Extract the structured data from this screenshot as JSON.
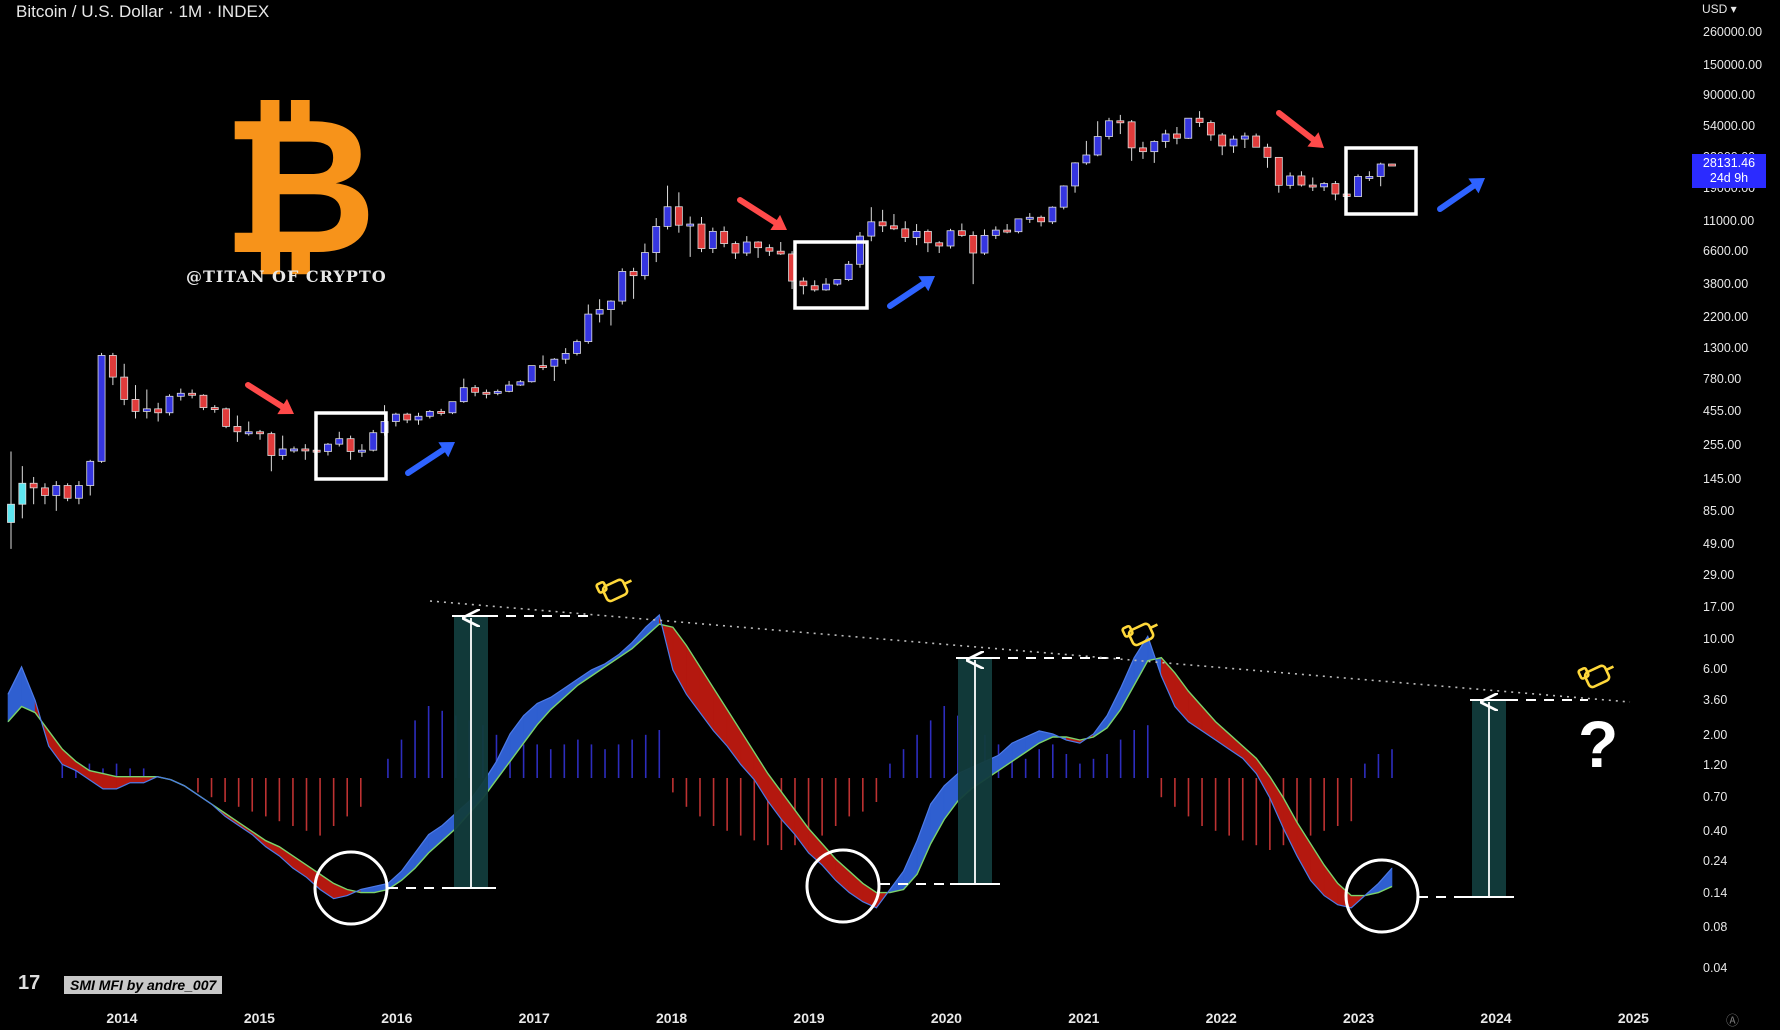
{
  "header": {
    "title": "Bitcoin / U.S. Dollar · 1M · INDEX",
    "currency": "USD"
  },
  "price_badge": {
    "price": "28131.46",
    "countdown": "24d 9h"
  },
  "overlay": {
    "logo_glyph": "B",
    "logo_text": "@TITAN OF CRYPTO",
    "indicator_name": "SMI MFI by andre_007",
    "tradingview_mark": "17",
    "question_mark": "?"
  },
  "colors": {
    "up": "#3535e0",
    "down": "#e03b3b",
    "early": "#5ee6f0",
    "bitcoin": "#f7931a",
    "band_blue": "#2f5fd0",
    "band_red": "#b4180f",
    "fill_green": "#5aa55a"
  },
  "chart_data": {
    "type": "candlestick",
    "scale": "log",
    "y_tick_labels": [
      "260000.00",
      "150000.00",
      "90000.00",
      "54000.00",
      "32000.00",
      "19000.00",
      "11000.00",
      "6600.00",
      "3800.00",
      "2200.00",
      "1300.00",
      "780.00",
      "455.00",
      "255.00",
      "145.00",
      "85.00",
      "49.00",
      "29.00",
      "17.00",
      "10.00",
      "6.00",
      "3.60",
      "2.00",
      "1.20",
      "0.70",
      "0.40",
      "0.24",
      "0.14",
      "0.08",
      "0.04"
    ],
    "x_tick_labels": [
      "2014",
      "2015",
      "2016",
      "2017",
      "2018",
      "2019",
      "2020",
      "2021",
      "2022",
      "2023",
      "2024",
      "2025"
    ],
    "x_range": [
      "2013-03",
      "2025-06"
    ],
    "candles": [
      {
        "o": 70,
        "h": 230,
        "l": 45,
        "c": 95,
        "g": "early"
      },
      {
        "o": 95,
        "h": 180,
        "l": 75,
        "c": 135,
        "g": "early"
      },
      {
        "o": 135,
        "h": 150,
        "l": 95,
        "c": 125
      },
      {
        "o": 125,
        "h": 135,
        "l": 95,
        "c": 110
      },
      {
        "o": 110,
        "h": 140,
        "l": 85,
        "c": 130,
        "g": "up"
      },
      {
        "o": 130,
        "h": 135,
        "l": 100,
        "c": 105
      },
      {
        "o": 105,
        "h": 140,
        "l": 95,
        "c": 130,
        "g": "up"
      },
      {
        "o": 130,
        "h": 200,
        "l": 110,
        "c": 195,
        "g": "up"
      },
      {
        "o": 195,
        "h": 1200,
        "l": 190,
        "c": 1150,
        "g": "up"
      },
      {
        "o": 1150,
        "h": 1200,
        "l": 700,
        "c": 800
      },
      {
        "o": 800,
        "h": 1000,
        "l": 500,
        "c": 550
      },
      {
        "o": 550,
        "h": 700,
        "l": 400,
        "c": 450
      },
      {
        "o": 450,
        "h": 650,
        "l": 400,
        "c": 470
      },
      {
        "o": 470,
        "h": 520,
        "l": 380,
        "c": 440
      },
      {
        "o": 440,
        "h": 600,
        "l": 420,
        "c": 580,
        "g": "up"
      },
      {
        "o": 580,
        "h": 660,
        "l": 540,
        "c": 610,
        "g": "up"
      },
      {
        "o": 610,
        "h": 650,
        "l": 560,
        "c": 590
      },
      {
        "o": 590,
        "h": 600,
        "l": 460,
        "c": 480
      },
      {
        "o": 480,
        "h": 500,
        "l": 440,
        "c": 470
      },
      {
        "o": 470,
        "h": 480,
        "l": 340,
        "c": 350
      },
      {
        "o": 350,
        "h": 420,
        "l": 270,
        "c": 320
      },
      {
        "o": 320,
        "h": 380,
        "l": 300,
        "c": 320
      },
      {
        "o": 320,
        "h": 330,
        "l": 280,
        "c": 310
      },
      {
        "o": 310,
        "h": 320,
        "l": 165,
        "c": 215
      },
      {
        "o": 215,
        "h": 300,
        "l": 200,
        "c": 240
      },
      {
        "o": 240,
        "h": 250,
        "l": 225,
        "c": 240
      },
      {
        "o": 240,
        "h": 260,
        "l": 200,
        "c": 235
      },
      {
        "o": 235,
        "h": 240,
        "l": 220,
        "c": 230
      },
      {
        "o": 230,
        "h": 265,
        "l": 215,
        "c": 260,
        "g": "up"
      },
      {
        "o": 260,
        "h": 320,
        "l": 250,
        "c": 285
      },
      {
        "o": 285,
        "h": 300,
        "l": 200,
        "c": 230
      },
      {
        "o": 230,
        "h": 260,
        "l": 210,
        "c": 235
      },
      {
        "o": 235,
        "h": 330,
        "l": 230,
        "c": 315,
        "g": "up"
      },
      {
        "o": 315,
        "h": 500,
        "l": 300,
        "c": 380,
        "g": "up"
      },
      {
        "o": 380,
        "h": 440,
        "l": 350,
        "c": 430
      },
      {
        "o": 430,
        "h": 440,
        "l": 370,
        "c": 390
      },
      {
        "o": 390,
        "h": 440,
        "l": 360,
        "c": 415,
        "g": "up"
      },
      {
        "o": 415,
        "h": 460,
        "l": 400,
        "c": 450,
        "g": "up"
      },
      {
        "o": 450,
        "h": 470,
        "l": 420,
        "c": 440
      },
      {
        "o": 440,
        "h": 530,
        "l": 430,
        "c": 530,
        "g": "up"
      },
      {
        "o": 530,
        "h": 780,
        "l": 520,
        "c": 670,
        "g": "up"
      },
      {
        "o": 670,
        "h": 700,
        "l": 580,
        "c": 620
      },
      {
        "o": 620,
        "h": 650,
        "l": 560,
        "c": 610
      },
      {
        "o": 610,
        "h": 650,
        "l": 590,
        "c": 630,
        "g": "up"
      },
      {
        "o": 630,
        "h": 750,
        "l": 620,
        "c": 700,
        "g": "up"
      },
      {
        "o": 700,
        "h": 760,
        "l": 690,
        "c": 740,
        "g": "up"
      },
      {
        "o": 740,
        "h": 920,
        "l": 730,
        "c": 970,
        "g": "up"
      },
      {
        "o": 970,
        "h": 1150,
        "l": 900,
        "c": 960
      },
      {
        "o": 960,
        "h": 1100,
        "l": 750,
        "c": 1080,
        "g": "up"
      },
      {
        "o": 1080,
        "h": 1300,
        "l": 1000,
        "c": 1190,
        "g": "up"
      },
      {
        "o": 1190,
        "h": 1500,
        "l": 1150,
        "c": 1450,
        "g": "up"
      },
      {
        "o": 1450,
        "h": 2700,
        "l": 1400,
        "c": 2300,
        "g": "up"
      },
      {
        "o": 2300,
        "h": 2950,
        "l": 2000,
        "c": 2480,
        "g": "up"
      },
      {
        "o": 2480,
        "h": 2900,
        "l": 1900,
        "c": 2860,
        "g": "up"
      },
      {
        "o": 2860,
        "h": 4950,
        "l": 2700,
        "c": 4700,
        "g": "up"
      },
      {
        "o": 4700,
        "h": 5000,
        "l": 2970,
        "c": 4380
      },
      {
        "o": 4380,
        "h": 7500,
        "l": 4100,
        "c": 6450,
        "g": "up"
      },
      {
        "o": 6450,
        "h": 11500,
        "l": 5500,
        "c": 10000,
        "g": "up"
      },
      {
        "o": 10000,
        "h": 19800,
        "l": 9500,
        "c": 13900,
        "g": "up"
      },
      {
        "o": 13900,
        "h": 17700,
        "l": 9000,
        "c": 10200
      },
      {
        "o": 10200,
        "h": 11800,
        "l": 6000,
        "c": 10400,
        "g": "up"
      },
      {
        "o": 10400,
        "h": 11700,
        "l": 6500,
        "c": 6900
      },
      {
        "o": 6900,
        "h": 9800,
        "l": 6400,
        "c": 9200,
        "g": "up"
      },
      {
        "o": 9200,
        "h": 9990,
        "l": 7050,
        "c": 7500
      },
      {
        "o": 7500,
        "h": 7780,
        "l": 5800,
        "c": 6400
      },
      {
        "o": 6400,
        "h": 8500,
        "l": 6100,
        "c": 7700,
        "g": "up"
      },
      {
        "o": 7700,
        "h": 7800,
        "l": 5900,
        "c": 7000
      },
      {
        "o": 7000,
        "h": 7400,
        "l": 6100,
        "c": 6600
      },
      {
        "o": 6600,
        "h": 7700,
        "l": 6200,
        "c": 6300
      },
      {
        "o": 6300,
        "h": 6600,
        "l": 3500,
        "c": 4000
      },
      {
        "o": 4000,
        "h": 4250,
        "l": 3200,
        "c": 3700
      },
      {
        "o": 3700,
        "h": 4050,
        "l": 3350,
        "c": 3450
      },
      {
        "o": 3450,
        "h": 4200,
        "l": 3400,
        "c": 3800,
        "g": "up"
      },
      {
        "o": 3800,
        "h": 4100,
        "l": 3700,
        "c": 4100,
        "g": "up"
      },
      {
        "o": 4100,
        "h": 5600,
        "l": 4000,
        "c": 5300,
        "g": "up"
      },
      {
        "o": 5300,
        "h": 9100,
        "l": 5000,
        "c": 8500,
        "g": "up"
      },
      {
        "o": 8500,
        "h": 13800,
        "l": 7800,
        "c": 10800,
        "g": "up"
      },
      {
        "o": 10800,
        "h": 13200,
        "l": 9100,
        "c": 10100
      },
      {
        "o": 10100,
        "h": 12300,
        "l": 9400,
        "c": 9600
      },
      {
        "o": 9600,
        "h": 10900,
        "l": 7700,
        "c": 8300
      },
      {
        "o": 8300,
        "h": 10400,
        "l": 7300,
        "c": 9200,
        "g": "up"
      },
      {
        "o": 9200,
        "h": 9500,
        "l": 6500,
        "c": 7600
      },
      {
        "o": 7600,
        "h": 7800,
        "l": 6400,
        "c": 7200
      },
      {
        "o": 7200,
        "h": 9600,
        "l": 6900,
        "c": 9300,
        "g": "up"
      },
      {
        "o": 9300,
        "h": 10500,
        "l": 8400,
        "c": 8600
      },
      {
        "o": 8600,
        "h": 9200,
        "l": 3800,
        "c": 6400
      },
      {
        "o": 6400,
        "h": 9500,
        "l": 6200,
        "c": 8600,
        "g": "up"
      },
      {
        "o": 8600,
        "h": 10000,
        "l": 8100,
        "c": 9400,
        "g": "up"
      },
      {
        "o": 9400,
        "h": 10400,
        "l": 8900,
        "c": 9150
      },
      {
        "o": 9150,
        "h": 11400,
        "l": 8900,
        "c": 11350,
        "g": "up"
      },
      {
        "o": 11350,
        "h": 12500,
        "l": 10600,
        "c": 11650,
        "g": "up"
      },
      {
        "o": 11650,
        "h": 12000,
        "l": 10000,
        "c": 10800
      },
      {
        "o": 10800,
        "h": 14000,
        "l": 10400,
        "c": 13800,
        "g": "up"
      },
      {
        "o": 13800,
        "h": 19900,
        "l": 13300,
        "c": 19700,
        "g": "up"
      },
      {
        "o": 19700,
        "h": 29300,
        "l": 17600,
        "c": 29000,
        "g": "up"
      },
      {
        "o": 29000,
        "h": 41900,
        "l": 28100,
        "c": 33100,
        "g": "up"
      },
      {
        "o": 33100,
        "h": 58300,
        "l": 32400,
        "c": 45100,
        "g": "up"
      },
      {
        "o": 45100,
        "h": 61700,
        "l": 43000,
        "c": 58700,
        "g": "up"
      },
      {
        "o": 58700,
        "h": 64800,
        "l": 47000,
        "c": 57700
      },
      {
        "o": 57700,
        "h": 59500,
        "l": 30000,
        "c": 37300
      },
      {
        "o": 37300,
        "h": 41300,
        "l": 31000,
        "c": 35000
      },
      {
        "o": 35000,
        "h": 42300,
        "l": 29000,
        "c": 41500,
        "g": "up"
      },
      {
        "o": 41500,
        "h": 50500,
        "l": 37300,
        "c": 47100,
        "g": "up"
      },
      {
        "o": 47100,
        "h": 52900,
        "l": 39600,
        "c": 43800
      },
      {
        "o": 43800,
        "h": 61500,
        "l": 43300,
        "c": 61300,
        "g": "up"
      },
      {
        "o": 61300,
        "h": 69000,
        "l": 53000,
        "c": 57000
      },
      {
        "o": 57000,
        "h": 59100,
        "l": 42000,
        "c": 46300
      },
      {
        "o": 46300,
        "h": 47900,
        "l": 33000,
        "c": 38500
      },
      {
        "o": 38500,
        "h": 45800,
        "l": 34300,
        "c": 43200,
        "g": "up"
      },
      {
        "o": 43200,
        "h": 48200,
        "l": 37200,
        "c": 45500,
        "g": "up"
      },
      {
        "o": 45500,
        "h": 47400,
        "l": 37700,
        "c": 37700
      },
      {
        "o": 37700,
        "h": 40000,
        "l": 26700,
        "c": 31800
      },
      {
        "o": 31800,
        "h": 31900,
        "l": 17600,
        "c": 19900
      },
      {
        "o": 19900,
        "h": 24700,
        "l": 18800,
        "c": 23300,
        "g": "up"
      },
      {
        "o": 23300,
        "h": 25200,
        "l": 19500,
        "c": 20000
      },
      {
        "o": 20000,
        "h": 22700,
        "l": 18100,
        "c": 19400
      },
      {
        "o": 19400,
        "h": 21000,
        "l": 18100,
        "c": 20500,
        "g": "up"
      },
      {
        "o": 20500,
        "h": 21400,
        "l": 15500,
        "c": 17200
      },
      {
        "o": 17200,
        "h": 18400,
        "l": 16300,
        "c": 16500
      },
      {
        "o": 16500,
        "h": 23900,
        "l": 16500,
        "c": 23100,
        "g": "up"
      },
      {
        "o": 23100,
        "h": 25200,
        "l": 21400,
        "c": 23100
      },
      {
        "o": 23100,
        "h": 29100,
        "l": 19600,
        "c": 28450,
        "g": "up"
      },
      {
        "o": 28450,
        "h": 28600,
        "l": 27500,
        "c": 28131,
        "g": "up"
      }
    ],
    "indicator": {
      "name": "SMI MFI by andre_007",
      "y_range": [
        0,
        10
      ],
      "fast": [
        7.4,
        8.3,
        7.2,
        5.7,
        5.1,
        4.9,
        4.6,
        4.3,
        4.3,
        4.5,
        4.5,
        4.7,
        4.6,
        4.4,
        4.1,
        3.8,
        3.4,
        3.1,
        2.8,
        2.4,
        2.1,
        1.7,
        1.4,
        1.0,
        0.7,
        0.8,
        1.0,
        1.1,
        1.2,
        1.6,
        2.2,
        2.8,
        3.1,
        3.5,
        3.9,
        4.5,
        5.2,
        6.1,
        6.7,
        7.1,
        7.3,
        7.6,
        7.9,
        8.2,
        8.4,
        8.7,
        9.1,
        9.6,
        10.0,
        8.2,
        7.4,
        6.8,
        6.2,
        5.7,
        5.1,
        4.6,
        3.9,
        3.3,
        2.8,
        2.2,
        1.8,
        1.3,
        0.9,
        0.6,
        0.4,
        1.0,
        1.6,
        2.6,
        3.8,
        4.4,
        4.8,
        5.0,
        5.2,
        5.4,
        5.8,
        6.0,
        6.2,
        6.1,
        5.9,
        5.8,
        6.1,
        6.7,
        7.6,
        8.6,
        9.3,
        8.0,
        7.0,
        6.5,
        6.2,
        5.9,
        5.6,
        5.3,
        4.8,
        4.0,
        3.0,
        2.1,
        1.3,
        0.8,
        0.5,
        0.4,
        0.8,
        1.2,
        1.7
      ],
      "slow": [
        6.5,
        7.0,
        6.8,
        6.2,
        5.6,
        5.2,
        4.9,
        4.8,
        4.7,
        4.7,
        4.7,
        4.7,
        4.6,
        4.4,
        4.1,
        3.8,
        3.5,
        3.2,
        2.9,
        2.6,
        2.4,
        2.1,
        1.8,
        1.5,
        1.2,
        1.0,
        0.9,
        0.9,
        1.0,
        1.3,
        1.7,
        2.2,
        2.6,
        3.0,
        3.5,
        4.0,
        4.6,
        5.2,
        5.8,
        6.4,
        6.9,
        7.3,
        7.7,
        8.0,
        8.3,
        8.6,
        8.9,
        9.3,
        9.7,
        9.6,
        9.0,
        8.3,
        7.6,
        6.9,
        6.2,
        5.5,
        4.8,
        4.2,
        3.6,
        3.0,
        2.5,
        2.0,
        1.6,
        1.2,
        0.9,
        0.9,
        1.0,
        1.5,
        2.5,
        3.3,
        3.9,
        4.3,
        4.6,
        4.9,
        5.2,
        5.5,
        5.8,
        6.0,
        6.0,
        5.9,
        6.0,
        6.3,
        6.9,
        7.7,
        8.5,
        8.6,
        8.1,
        7.5,
        7.0,
        6.5,
        6.1,
        5.7,
        5.3,
        4.7,
        4.0,
        3.2,
        2.5,
        1.8,
        1.2,
        0.8,
        0.8,
        0.9,
        1.1
      ],
      "histogram": [
        0,
        0,
        0,
        0,
        0.4,
        0.3,
        0.3,
        0.2,
        0.3,
        0.2,
        0.2,
        0,
        0,
        0,
        -0.3,
        -0.4,
        -0.5,
        -0.6,
        -0.7,
        -0.8,
        -0.9,
        -1.0,
        -1.1,
        -1.2,
        -1.0,
        -0.8,
        -0.6,
        0,
        0.4,
        0.8,
        1.2,
        1.5,
        1.4,
        1.3,
        1.2,
        1.1,
        0.9,
        0.8,
        0.7,
        0.7,
        0.6,
        0.7,
        0.8,
        0.7,
        0.6,
        0.7,
        0.8,
        0.9,
        1.0,
        -0.3,
        -0.6,
        -0.8,
        -1.0,
        -1.1,
        -1.2,
        -1.3,
        -1.4,
        -1.5,
        -1.4,
        -1.3,
        -1.2,
        -1.0,
        -0.8,
        -0.7,
        -0.5,
        0.3,
        0.6,
        0.9,
        1.2,
        1.5,
        1.3,
        1.1,
        0.9,
        0.7,
        0.5,
        0.4,
        0.6,
        0.7,
        0.5,
        0.3,
        0.4,
        0.5,
        0.8,
        1.0,
        1.1,
        -0.4,
        -0.6,
        -0.8,
        -1.0,
        -1.1,
        -1.2,
        -1.3,
        -1.4,
        -1.5,
        -1.4,
        -1.3,
        -1.2,
        -1.1,
        -1.0,
        -0.9,
        0.3,
        0.5,
        0.6
      ]
    }
  }
}
